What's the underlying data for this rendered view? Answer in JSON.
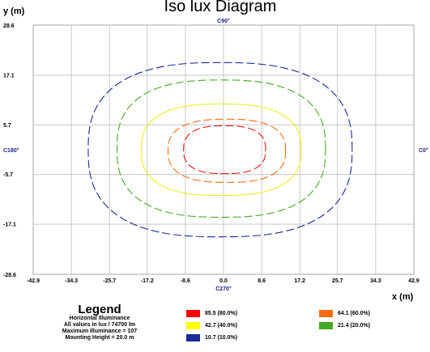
{
  "chart_data": {
    "type": "contour",
    "title": "Iso lux Diagram",
    "xlabel": "x (m)",
    "ylabel": "y (m)",
    "xlim": [
      -42.9,
      42.9
    ],
    "ylim": [
      -28.6,
      28.6
    ],
    "xticks": [
      "-42.9",
      "-34.3",
      "-25.7",
      "-17.2",
      "-8.6",
      "0.0",
      "8.6",
      "17.2",
      "25.7",
      "34.3",
      "42.9"
    ],
    "yticks": [
      "28.6",
      "17.1",
      "5.7",
      "-5.7",
      "-17.1",
      "-28.6"
    ],
    "grid": true,
    "angle_labels": {
      "top": "C90°",
      "bottom": "C270°",
      "left": "C180°",
      "right": "C0°"
    },
    "contours": [
      {
        "label": "85.5 (80.0%)",
        "color": "#ee1111",
        "dashed": true,
        "x_extent": [
          -9.0,
          9.5
        ],
        "y_extent": [
          -5.5,
          5.5
        ]
      },
      {
        "label": "64.1 (60.0%)",
        "color": "#ff6a10",
        "dashed": true,
        "x_extent": [
          -12.5,
          14.0
        ],
        "y_extent": [
          -7.5,
          7.0
        ]
      },
      {
        "label": "42.7 (40.0%)",
        "color": "#eeee22",
        "dashed": false,
        "x_extent": [
          -18.5,
          17.5
        ],
        "y_extent": [
          -10.5,
          10.5
        ]
      },
      {
        "label": "21.4 (20.0%)",
        "color": "#44aa22",
        "dashed": true,
        "x_extent": [
          -24.0,
          23.0
        ],
        "y_extent": [
          -15.5,
          16.0
        ]
      },
      {
        "label": "10.7 (10.0%)",
        "color": "#1a2a99",
        "dashed": true,
        "x_extent": [
          -30.5,
          29.0
        ],
        "y_extent": [
          -20.0,
          20.0
        ]
      }
    ]
  },
  "legend": {
    "title": "Legend",
    "lines": [
      "Horizontal Illuminance",
      "All values in lux / 74700 lm",
      "Maximum Illuminance = 107",
      "Mounting Height = 20.0 m"
    ],
    "entries": [
      {
        "label": "85.5  (80.0%)",
        "color": "#ff0000"
      },
      {
        "label": "64.1  (60.0%)",
        "color": "#ff6a10"
      },
      {
        "label": "42.7  (40.0%)",
        "color": "#ffff00"
      },
      {
        "label": "21.4  (20.0%)",
        "color": "#44aa22"
      },
      {
        "label": "10.7  (10.0%)",
        "color": "#1a2a99"
      }
    ]
  }
}
